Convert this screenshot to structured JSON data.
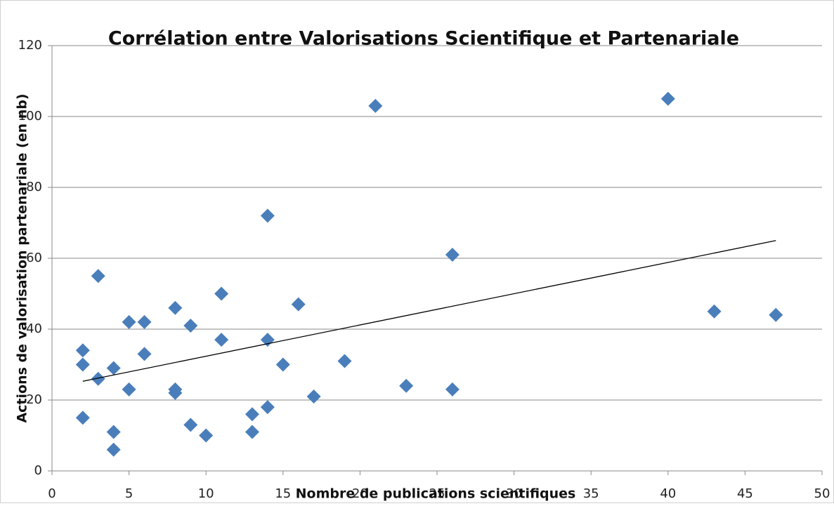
{
  "chart_data": {
    "type": "scatter",
    "title": "Corrélation entre Valorisations Scientifique et Partenariale",
    "x_label": "Nombre de publications scientifiques",
    "y_label": "Actions de valorisation partenariale (en nb)",
    "xlim": [
      0,
      50
    ],
    "xticks": [
      0,
      5,
      10,
      15,
      20,
      25,
      30,
      35,
      40,
      45,
      50
    ],
    "ylim": [
      0,
      120
    ],
    "yticks": [
      0,
      20,
      40,
      60,
      80,
      100,
      120
    ],
    "grid": true,
    "series": [
      {
        "color": "#4a7ebb",
        "x": [
          2,
          2,
          2,
          3,
          3,
          4,
          4,
          4,
          5,
          5,
          6,
          6,
          8,
          8,
          8,
          9,
          9,
          10,
          11,
          11,
          13,
          13,
          14,
          14,
          14,
          15,
          16,
          17,
          19,
          21,
          23,
          26,
          26,
          40,
          43,
          47
        ],
        "values": [
          34,
          30,
          15,
          55,
          26,
          29,
          11,
          6,
          42,
          23,
          42,
          33,
          46,
          23,
          22,
          41,
          13,
          10,
          50,
          37,
          16,
          11,
          72,
          37,
          18,
          30,
          47,
          21,
          31,
          103,
          24,
          61,
          23,
          105,
          45,
          44
        ]
      }
    ],
    "trendline": {
      "color": "#000000",
      "x": [
        2,
        47
      ],
      "values": [
        25.3,
        65
      ]
    }
  }
}
